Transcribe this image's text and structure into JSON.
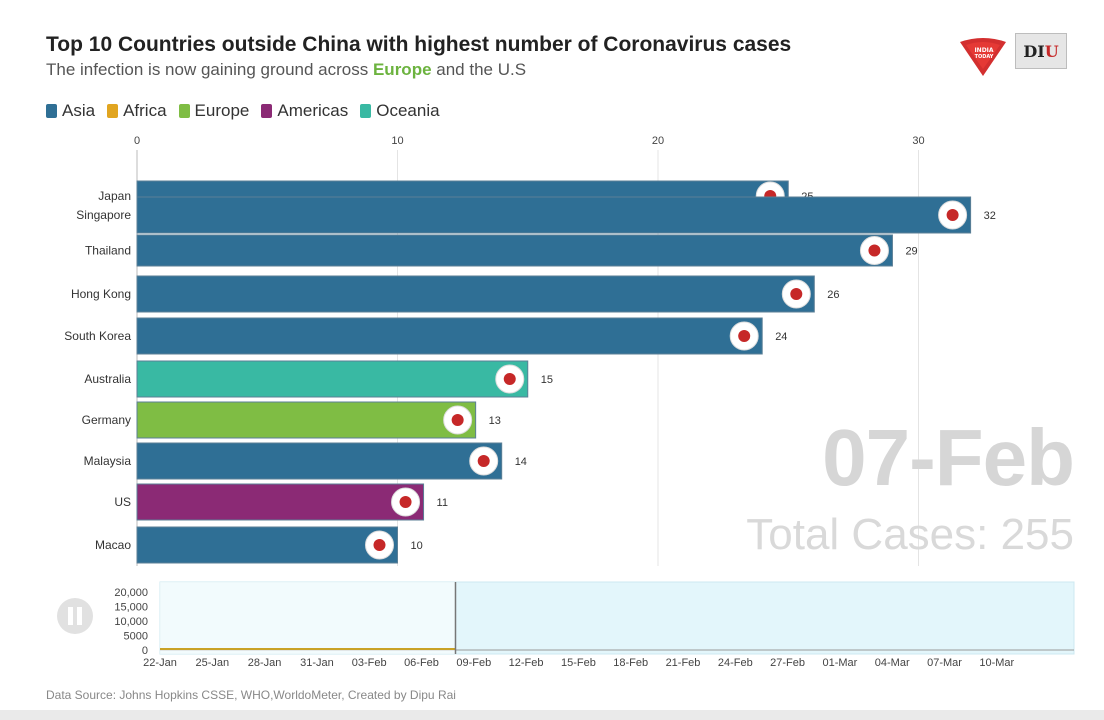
{
  "header": {
    "title": "Top 10 Countries outside China with highest number of Coronavirus cases",
    "subtitle_pre": "The infection is now gaining ground across ",
    "subtitle_hl": "Europe",
    "subtitle_post": " and the U.S"
  },
  "logos": {
    "india_today": "INDIA TODAY GROUP",
    "diu": "DIU"
  },
  "legend": [
    {
      "label": "Asia",
      "color": "#2f6f95"
    },
    {
      "label": "Africa",
      "color": "#e1a520"
    },
    {
      "label": "Europe",
      "color": "#7fbd44"
    },
    {
      "label": "Americas",
      "color": "#8b2a75"
    },
    {
      "label": "Oceania",
      "color": "#39b9a3"
    }
  ],
  "overlay": {
    "date": "07-Feb",
    "total": "Total Cases: 255"
  },
  "source": "Data Source: Johns Hopkins CSSE, WHO,WorldoMeter, Created by Dipu Rai",
  "chart_data": {
    "type": "bar",
    "orientation": "horizontal",
    "xlim": [
      0,
      35
    ],
    "xticks": [
      "0",
      "10",
      "20",
      "30"
    ],
    "categories": [
      "Japan",
      "Singapore",
      "Thailand",
      "Hong Kong",
      "South Korea",
      "Australia",
      "Germany",
      "Malaysia",
      "US",
      "Macao"
    ],
    "values": [
      25,
      32,
      29,
      26,
      24,
      15,
      13,
      14,
      11,
      10
    ],
    "value_labels": [
      "25",
      "32",
      "29",
      "26",
      "24",
      "15",
      "13",
      "14",
      "11",
      "10"
    ],
    "regions": [
      "Asia",
      "Asia",
      "Asia",
      "Asia",
      "Asia",
      "Oceania",
      "Europe",
      "Asia",
      "Americas",
      "Asia"
    ],
    "timeline": {
      "yticks": [
        "20,000",
        "15,000",
        "10,000",
        "5000",
        "0"
      ],
      "ylim": [
        0,
        20000
      ],
      "dates": [
        "22-Jan",
        "25-Jan",
        "28-Jan",
        "31-Jan",
        "03-Feb",
        "06-Feb",
        "09-Feb",
        "12-Feb",
        "15-Feb",
        "18-Feb",
        "21-Feb",
        "24-Feb",
        "27-Feb",
        "01-Mar",
        "04-Mar",
        "07-Mar",
        "10-Mar"
      ],
      "current": "07-Feb",
      "total_cases": 255
    }
  }
}
